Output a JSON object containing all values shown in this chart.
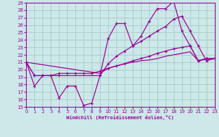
{
  "xlabel": "Windchill (Refroidissement éolien,°C)",
  "bg_color": "#cce8e8",
  "grid_color": "#aacccc",
  "line_color": "#990099",
  "xlim": [
    0,
    23
  ],
  "ylim": [
    15,
    29
  ],
  "xticks": [
    0,
    1,
    2,
    3,
    4,
    5,
    6,
    7,
    8,
    9,
    10,
    11,
    12,
    13,
    14,
    15,
    16,
    17,
    18,
    19,
    20,
    21,
    22,
    23
  ],
  "yticks": [
    15,
    16,
    17,
    18,
    19,
    20,
    21,
    22,
    23,
    24,
    25,
    26,
    27,
    28,
    29
  ],
  "series1_x": [
    0,
    1,
    2,
    3,
    4,
    5,
    6,
    7,
    8,
    9,
    10,
    11,
    12,
    13,
    14,
    15,
    16,
    17,
    18,
    19,
    20,
    21,
    22,
    23
  ],
  "series1_y": [
    21,
    17.8,
    19.2,
    19.2,
    16.2,
    17.8,
    17.8,
    15.2,
    15.5,
    19.2,
    24.2,
    26.2,
    26.2,
    23.2,
    24.5,
    26.5,
    28.2,
    28.2,
    29.2,
    25.2,
    23.2,
    21.2,
    21.5,
    21.5
  ],
  "series2_x": [
    0,
    1,
    2,
    4,
    9,
    10,
    11,
    12,
    13,
    14,
    15,
    16,
    17,
    18,
    19,
    20,
    21,
    22,
    23
  ],
  "series2_y": [
    21,
    19.2,
    19.2,
    19.2,
    19.2,
    20.8,
    21.8,
    22.5,
    23.2,
    23.8,
    24.5,
    25.2,
    25.8,
    26.8,
    27.2,
    25.2,
    23.2,
    21.2,
    21.5
  ],
  "series3_x": [
    0,
    1,
    2,
    3,
    4,
    5,
    6,
    7,
    8,
    9,
    10,
    11,
    12,
    13,
    14,
    15,
    16,
    17,
    18,
    19,
    20,
    21,
    22,
    23
  ],
  "series3_y": [
    21,
    19.2,
    19.2,
    19.2,
    19.5,
    19.5,
    19.5,
    19.5,
    19.5,
    19.8,
    20.2,
    20.5,
    20.8,
    21.2,
    21.5,
    21.8,
    22.2,
    22.5,
    22.8,
    23.0,
    23.2,
    21.2,
    21.5,
    21.5
  ],
  "series4_x": [
    0,
    9,
    10,
    11,
    12,
    13,
    14,
    15,
    16,
    17,
    18,
    19,
    20,
    21,
    22,
    23
  ],
  "series4_y": [
    21,
    19.5,
    20.2,
    20.5,
    20.8,
    21.0,
    21.2,
    21.3,
    21.5,
    21.8,
    22.0,
    22.2,
    22.4,
    21.2,
    21.4,
    21.5
  ]
}
